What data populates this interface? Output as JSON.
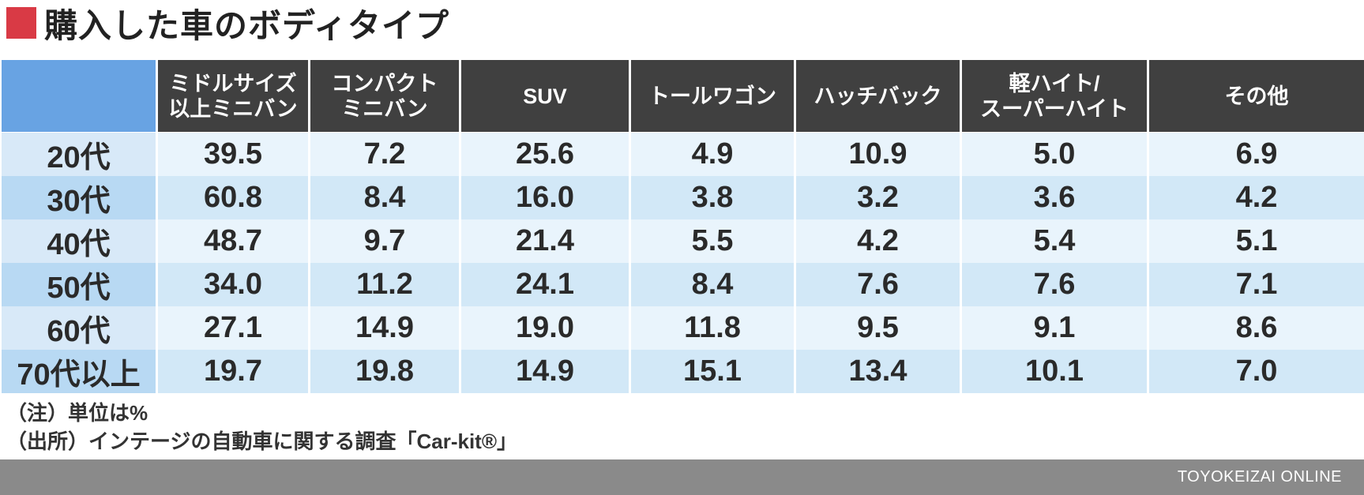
{
  "title": "購入した車のボディタイプ",
  "colors": {
    "accent": "#d93a45",
    "header_bg": "#404040",
    "corner_bg": "#68a3e3"
  },
  "chart_data": {
    "type": "table",
    "title": "購入した車のボディタイプ",
    "columns": [
      [
        "ミドルサイズ",
        "以上ミニバン"
      ],
      [
        "コンパクト",
        "ミニバン"
      ],
      [
        "SUV"
      ],
      [
        "トールワゴン"
      ],
      [
        "ハッチバック"
      ],
      [
        "軽ハイト/",
        "スーパーハイト"
      ],
      [
        "その他"
      ]
    ],
    "rows": [
      {
        "label": "20代",
        "values": [
          "39.5",
          "7.2",
          "25.6",
          "4.9",
          "10.9",
          "5.0",
          "6.9"
        ]
      },
      {
        "label": "30代",
        "values": [
          "60.8",
          "8.4",
          "16.0",
          "3.8",
          "3.2",
          "3.6",
          "4.2"
        ]
      },
      {
        "label": "40代",
        "values": [
          "48.7",
          "9.7",
          "21.4",
          "5.5",
          "4.2",
          "5.4",
          "5.1"
        ]
      },
      {
        "label": "50代",
        "values": [
          "34.0",
          "11.2",
          "24.1",
          "8.4",
          "7.6",
          "7.6",
          "7.1"
        ]
      },
      {
        "label": "60代",
        "values": [
          "27.1",
          "14.9",
          "19.0",
          "11.8",
          "9.5",
          "9.1",
          "8.6"
        ]
      },
      {
        "label": "70代以上",
        "values": [
          "19.7",
          "19.8",
          "14.9",
          "15.1",
          "13.4",
          "10.1",
          "7.0"
        ]
      }
    ]
  },
  "notes": {
    "unit": "（注）単位は%",
    "source": "（出所）インテージの自動車に関する調査「Car-kit®」"
  },
  "footer": {
    "brand": "TOYOKEIZAI ONLINE"
  }
}
